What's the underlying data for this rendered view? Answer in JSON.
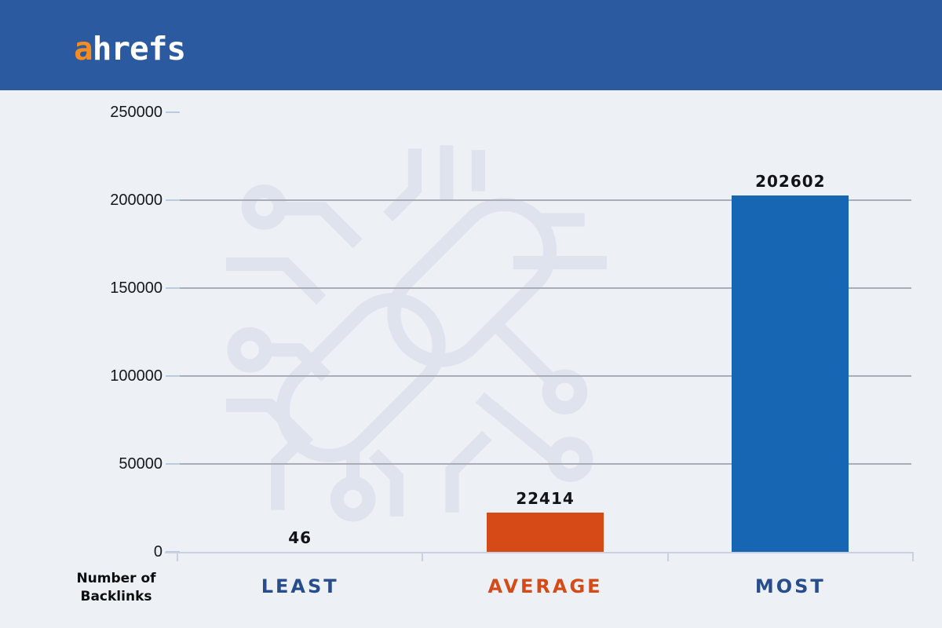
{
  "header": {
    "logo_prefix": "a",
    "logo_suffix": "hrefs"
  },
  "colors": {
    "header_background": "#2b5aa0",
    "logo_a": "#f68b1f",
    "logo_text": "#ffffff",
    "page_background": "#edf0f5",
    "bar_blue": "#1766b3",
    "bar_orange": "#d54a16",
    "category_blue": "#274d8d",
    "category_orange": "#d54a16",
    "gridline": "#a9adb5",
    "axis": "#c6d2e2",
    "watermark": "#dfe3ee"
  },
  "chart_data": {
    "type": "bar",
    "title": "",
    "categories": [
      "LEAST",
      "AVERAGE",
      "MOST"
    ],
    "values": [
      46,
      22414,
      202602
    ],
    "value_labels": [
      "46",
      "22414",
      "202602"
    ],
    "bar_colors": [
      "#1766b3",
      "#d54a16",
      "#1766b3"
    ],
    "category_label_colors": [
      "#274d8d",
      "#d54a16",
      "#274d8d"
    ],
    "yticks": [
      0,
      50000,
      100000,
      150000,
      200000,
      250000
    ],
    "ytick_labels": [
      "0",
      "50000",
      "100000",
      "150000",
      "200000",
      "250000"
    ],
    "ylim": [
      0,
      250000
    ],
    "ylabel_lines": [
      "Number of",
      "Backlinks"
    ],
    "xlabel": "",
    "grid": true,
    "legend": "none"
  }
}
